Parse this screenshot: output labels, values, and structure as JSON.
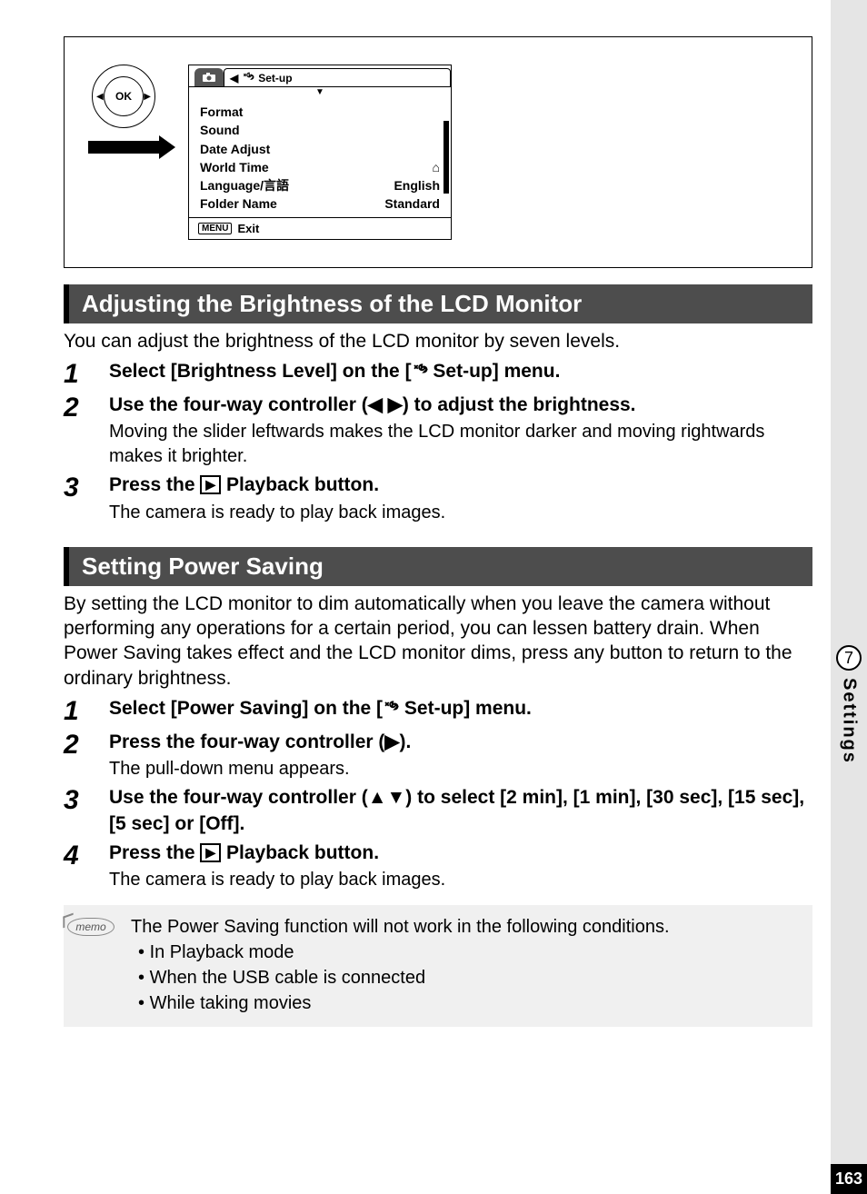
{
  "lcd": {
    "tab_title": "Set-up",
    "items": [
      {
        "label": "Format",
        "value": ""
      },
      {
        "label": "Sound",
        "value": ""
      },
      {
        "label": "Date Adjust",
        "value": ""
      },
      {
        "label": "World Time",
        "value": "⌂"
      },
      {
        "label": "Language/言語",
        "value": "English"
      },
      {
        "label": "Folder Name",
        "value": "Standard"
      }
    ],
    "exit_btn": "MENU",
    "exit_label": "Exit",
    "ok_label": "OK"
  },
  "section1": {
    "title": "Adjusting the Brightness of the LCD Monitor",
    "intro": "You can adjust the brightness of the LCD monitor by seven levels.",
    "steps": [
      {
        "n": "1",
        "title": "Select [Brightness Level] on the [",
        "title2": " Set-up] menu."
      },
      {
        "n": "2",
        "title": "Use the four-way controller (◀ ▶) to adjust the brightness.",
        "sub": "Moving the slider leftwards makes the LCD monitor darker and moving rightwards makes it brighter."
      },
      {
        "n": "3",
        "title": "Press the ",
        "title2": " Playback button.",
        "sub": "The camera is ready to play back images."
      }
    ]
  },
  "section2": {
    "title": "Setting Power Saving",
    "intro": "By setting the LCD monitor to dim automatically when you leave the camera without performing any operations for a certain period, you can lessen battery drain. When Power Saving takes effect and the LCD monitor dims, press any button to return to the ordinary brightness.",
    "steps": [
      {
        "n": "1",
        "title": "Select [Power Saving] on the [",
        "title2": " Set-up] menu."
      },
      {
        "n": "2",
        "title": "Press the four-way controller (▶).",
        "sub": "The pull-down menu appears."
      },
      {
        "n": "3",
        "title": "Use the four-way controller (▲▼) to select [2 min], [1 min], [30 sec], [15 sec], [5 sec] or [Off]."
      },
      {
        "n": "4",
        "title": "Press the ",
        "title2": " Playback button.",
        "sub": "The camera is ready to play back images."
      }
    ]
  },
  "memo": {
    "label": "memo",
    "lead": "The Power Saving function will not work in the following conditions.",
    "items": [
      "In Playback mode",
      "When the USB cable is connected",
      "While taking movies"
    ]
  },
  "side": {
    "chapter": "7",
    "label": "Settings",
    "page": "163"
  },
  "colors": {
    "bar_bg": "#4d4d4d",
    "side_bg": "#e5e5e5",
    "memo_bg": "#f0f0f0"
  }
}
